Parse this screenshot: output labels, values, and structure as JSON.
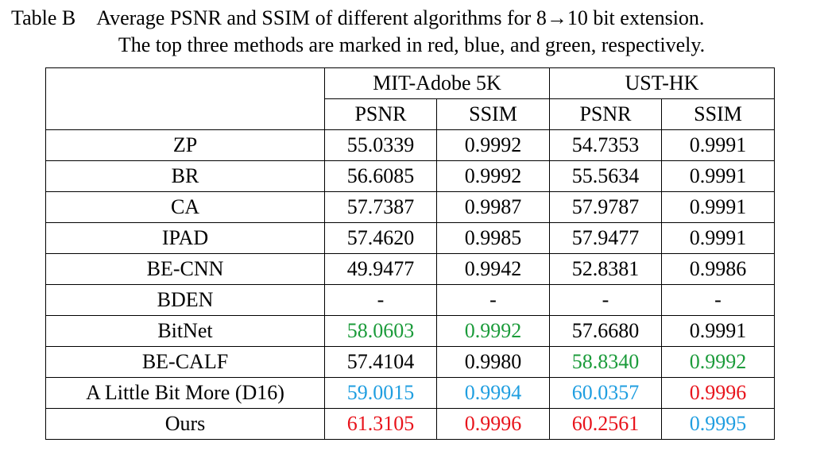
{
  "caption": {
    "label": "Table B",
    "line1_text": "Average PSNR and SSIM of different algorithms for 8→10 bit extension.",
    "line2_text": "The top three methods are marked in red, blue, and green, respectively."
  },
  "colors": {
    "top1": "#e8141c",
    "top2": "#1f9ee0",
    "top3": "#1b9b3a"
  },
  "table": {
    "datasets": [
      "MIT-Adobe 5K",
      "UST-HK"
    ],
    "metrics": [
      "PSNR",
      "SSIM",
      "PSNR",
      "SSIM"
    ],
    "rows": [
      {
        "method": "ZP",
        "values": [
          "55.0339",
          "0.9992",
          "54.7353",
          "0.9991"
        ],
        "ranks": [
          0,
          0,
          0,
          0
        ]
      },
      {
        "method": "BR",
        "values": [
          "56.6085",
          "0.9992",
          "55.5634",
          "0.9991"
        ],
        "ranks": [
          0,
          0,
          0,
          0
        ]
      },
      {
        "method": "CA",
        "values": [
          "57.7387",
          "0.9987",
          "57.9787",
          "0.9991"
        ],
        "ranks": [
          0,
          0,
          0,
          0
        ]
      },
      {
        "method": "IPAD",
        "values": [
          "57.4620",
          "0.9985",
          "57.9477",
          "0.9991"
        ],
        "ranks": [
          0,
          0,
          0,
          0
        ]
      },
      {
        "method": "BE-CNN",
        "values": [
          "49.9477",
          "0.9942",
          "52.8381",
          "0.9986"
        ],
        "ranks": [
          0,
          0,
          0,
          0
        ]
      },
      {
        "method": "BDEN",
        "values": [
          "-",
          "-",
          "-",
          "-"
        ],
        "ranks": [
          0,
          0,
          0,
          0
        ]
      },
      {
        "method": "BitNet",
        "values": [
          "58.0603",
          "0.9992",
          "57.6680",
          "0.9991"
        ],
        "ranks": [
          3,
          3,
          0,
          0
        ]
      },
      {
        "method": "BE-CALF",
        "values": [
          "57.4104",
          "0.9980",
          "58.8340",
          "0.9992"
        ],
        "ranks": [
          0,
          0,
          3,
          3
        ]
      },
      {
        "method": "A Little Bit More (D16)",
        "values": [
          "59.0015",
          "0.9994",
          "60.0357",
          "0.9996"
        ],
        "ranks": [
          2,
          2,
          2,
          1
        ]
      },
      {
        "method": "Ours",
        "values": [
          "61.3105",
          "0.9996",
          "60.2561",
          "0.9995"
        ],
        "ranks": [
          1,
          1,
          1,
          2
        ]
      }
    ]
  }
}
